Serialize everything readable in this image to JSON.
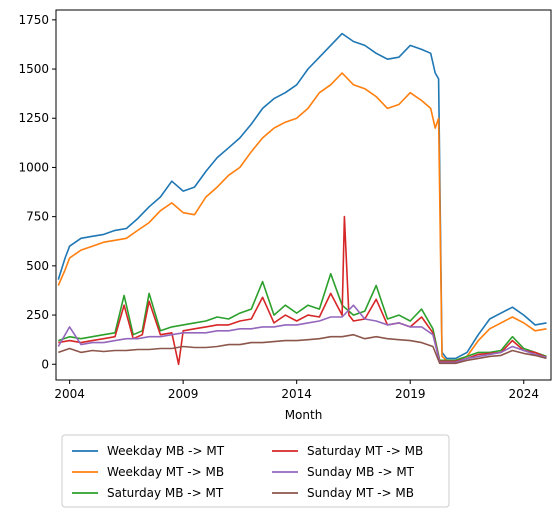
{
  "chart_data": {
    "type": "line",
    "title": "",
    "xlabel": "Month",
    "ylabel": "",
    "xlim": [
      2003.4,
      2025.2
    ],
    "ylim": [
      -80,
      1800
    ],
    "x_ticks": [
      2004,
      2009,
      2014,
      2019,
      2024
    ],
    "y_ticks": [
      0,
      250,
      500,
      750,
      1000,
      1250,
      1500,
      1750
    ],
    "grid": false,
    "legend_position": "below-plot",
    "series": [
      {
        "name": "Weekday MB -> MT",
        "color": "#1f77b4",
        "x": [
          2003.5,
          2003.8,
          2004.0,
          2004.5,
          2005.0,
          2005.5,
          2006.0,
          2006.5,
          2007.0,
          2007.5,
          2008.0,
          2008.5,
          2009.0,
          2009.5,
          2010.0,
          2010.5,
          2011.0,
          2011.5,
          2012.0,
          2012.5,
          2013.0,
          2013.5,
          2014.0,
          2014.5,
          2015.0,
          2015.5,
          2016.0,
          2016.5,
          2017.0,
          2017.5,
          2018.0,
          2018.5,
          2019.0,
          2019.5,
          2019.9,
          2020.1,
          2020.25,
          2020.4,
          2020.6,
          2021.0,
          2021.5,
          2022.0,
          2022.5,
          2023.0,
          2023.5,
          2024.0,
          2024.5,
          2025.0
        ],
        "y": [
          430,
          540,
          600,
          640,
          650,
          660,
          680,
          690,
          740,
          800,
          850,
          930,
          880,
          900,
          980,
          1050,
          1100,
          1150,
          1220,
          1300,
          1350,
          1380,
          1420,
          1500,
          1560,
          1620,
          1680,
          1640,
          1620,
          1580,
          1550,
          1560,
          1620,
          1600,
          1580,
          1480,
          1450,
          60,
          30,
          30,
          60,
          150,
          230,
          260,
          290,
          250,
          200,
          210
        ]
      },
      {
        "name": "Weekday MT -> MB",
        "color": "#ff7f0e",
        "x": [
          2003.5,
          2003.8,
          2004.0,
          2004.5,
          2005.0,
          2005.5,
          2006.0,
          2006.5,
          2007.0,
          2007.5,
          2008.0,
          2008.5,
          2009.0,
          2009.5,
          2010.0,
          2010.5,
          2011.0,
          2011.5,
          2012.0,
          2012.5,
          2013.0,
          2013.5,
          2014.0,
          2014.5,
          2015.0,
          2015.5,
          2016.0,
          2016.5,
          2017.0,
          2017.5,
          2018.0,
          2018.5,
          2019.0,
          2019.5,
          2019.9,
          2020.1,
          2020.25,
          2020.4,
          2020.6,
          2021.0,
          2021.5,
          2022.0,
          2022.5,
          2023.0,
          2023.5,
          2024.0,
          2024.5,
          2025.0
        ],
        "y": [
          400,
          480,
          540,
          580,
          600,
          620,
          630,
          640,
          680,
          720,
          780,
          820,
          770,
          760,
          850,
          900,
          960,
          1000,
          1080,
          1150,
          1200,
          1230,
          1250,
          1300,
          1380,
          1420,
          1480,
          1420,
          1400,
          1360,
          1300,
          1320,
          1380,
          1340,
          1300,
          1200,
          1250,
          40,
          20,
          20,
          40,
          120,
          180,
          210,
          240,
          210,
          170,
          180
        ]
      },
      {
        "name": "Saturday MB -> MT",
        "color": "#2ca02c",
        "x": [
          2003.5,
          2004.0,
          2004.5,
          2005.0,
          2005.5,
          2006.0,
          2006.4,
          2006.8,
          2007.2,
          2007.5,
          2008.0,
          2008.5,
          2009.0,
          2009.5,
          2010.0,
          2010.5,
          2011.0,
          2011.5,
          2012.0,
          2012.5,
          2013.0,
          2013.5,
          2014.0,
          2014.5,
          2015.0,
          2015.5,
          2016.0,
          2016.5,
          2017.0,
          2017.5,
          2018.0,
          2018.5,
          2019.0,
          2019.5,
          2020.0,
          2020.3,
          2020.6,
          2021.0,
          2021.5,
          2022.0,
          2022.5,
          2023.0,
          2023.5,
          2024.0,
          2024.5,
          2025.0
        ],
        "y": [
          120,
          140,
          130,
          140,
          150,
          160,
          350,
          150,
          170,
          360,
          170,
          190,
          200,
          210,
          220,
          240,
          230,
          260,
          280,
          420,
          250,
          300,
          260,
          300,
          280,
          460,
          300,
          250,
          270,
          400,
          230,
          250,
          220,
          280,
          180,
          20,
          20,
          20,
          40,
          60,
          60,
          70,
          140,
          80,
          60,
          40
        ]
      },
      {
        "name": "Saturday MT -> MB",
        "color": "#d62728",
        "x": [
          2003.5,
          2004.0,
          2004.5,
          2005.0,
          2005.5,
          2006.0,
          2006.4,
          2006.8,
          2007.2,
          2007.5,
          2008.0,
          2008.5,
          2008.8,
          2009.0,
          2009.5,
          2010.0,
          2010.5,
          2011.0,
          2011.5,
          2012.0,
          2012.5,
          2013.0,
          2013.5,
          2014.0,
          2014.5,
          2015.0,
          2015.5,
          2016.0,
          2016.1,
          2016.3,
          2016.5,
          2017.0,
          2017.5,
          2018.0,
          2018.5,
          2019.0,
          2019.5,
          2020.0,
          2020.3,
          2020.6,
          2021.0,
          2021.5,
          2022.0,
          2022.5,
          2023.0,
          2023.5,
          2024.0,
          2024.5,
          2025.0
        ],
        "y": [
          110,
          120,
          110,
          120,
          130,
          140,
          300,
          130,
          150,
          320,
          150,
          160,
          0,
          170,
          180,
          190,
          200,
          200,
          220,
          230,
          340,
          210,
          250,
          220,
          250,
          240,
          360,
          250,
          750,
          250,
          220,
          230,
          330,
          200,
          210,
          190,
          240,
          160,
          15,
          15,
          15,
          30,
          50,
          55,
          60,
          120,
          70,
          60,
          35
        ]
      },
      {
        "name": "Sunday MB -> MT",
        "color": "#9467bd",
        "x": [
          2003.5,
          2004.0,
          2004.5,
          2005.0,
          2005.5,
          2006.0,
          2006.5,
          2007.0,
          2007.5,
          2008.0,
          2008.5,
          2009.0,
          2009.5,
          2010.0,
          2010.5,
          2011.0,
          2011.5,
          2012.0,
          2012.5,
          2013.0,
          2013.5,
          2014.0,
          2014.5,
          2015.0,
          2015.5,
          2016.0,
          2016.5,
          2017.0,
          2017.5,
          2018.0,
          2018.5,
          2019.0,
          2019.5,
          2020.0,
          2020.3,
          2020.6,
          2021.0,
          2021.5,
          2022.0,
          2022.5,
          2023.0,
          2023.5,
          2024.0,
          2024.5,
          2025.0
        ],
        "y": [
          90,
          190,
          100,
          110,
          110,
          120,
          130,
          130,
          140,
          140,
          150,
          160,
          160,
          160,
          170,
          170,
          180,
          180,
          190,
          190,
          200,
          200,
          210,
          220,
          240,
          240,
          300,
          230,
          220,
          200,
          210,
          190,
          190,
          150,
          10,
          10,
          10,
          30,
          40,
          50,
          60,
          90,
          70,
          50,
          35
        ]
      },
      {
        "name": "Sunday MT -> MB",
        "color": "#8c564b",
        "x": [
          2003.5,
          2004.0,
          2004.5,
          2005.0,
          2005.5,
          2006.0,
          2006.5,
          2007.0,
          2007.5,
          2008.0,
          2008.5,
          2009.0,
          2009.5,
          2010.0,
          2010.5,
          2011.0,
          2011.5,
          2012.0,
          2012.5,
          2013.0,
          2013.5,
          2014.0,
          2014.5,
          2015.0,
          2015.5,
          2016.0,
          2016.5,
          2017.0,
          2017.5,
          2018.0,
          2018.5,
          2019.0,
          2019.5,
          2020.0,
          2020.3,
          2020.6,
          2021.0,
          2021.5,
          2022.0,
          2022.5,
          2023.0,
          2023.5,
          2024.0,
          2024.5,
          2025.0
        ],
        "y": [
          60,
          80,
          60,
          70,
          65,
          70,
          70,
          75,
          75,
          80,
          80,
          90,
          85,
          85,
          90,
          100,
          100,
          110,
          110,
          115,
          120,
          120,
          125,
          130,
          140,
          140,
          150,
          130,
          140,
          130,
          125,
          120,
          110,
          90,
          5,
          5,
          5,
          20,
          30,
          40,
          45,
          70,
          55,
          45,
          30
        ]
      }
    ]
  }
}
